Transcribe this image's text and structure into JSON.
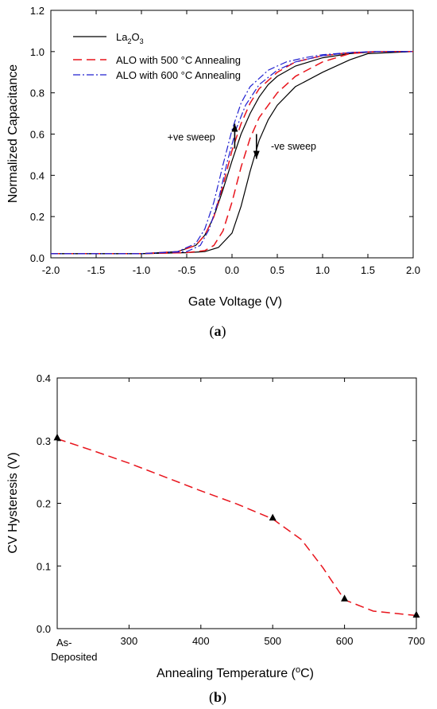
{
  "chart_data": [
    {
      "type": "line",
      "panel_label": "a",
      "xlabel": "Gate Voltage (V)",
      "ylabel": "Normalized Capacitance",
      "xlim": [
        -2.0,
        2.0
      ],
      "ylim": [
        0,
        1.2
      ],
      "xticks": [
        -2.0,
        -1.5,
        -1.0,
        -0.5,
        0.0,
        0.5,
        1.0,
        1.5,
        2.0
      ],
      "xtick_labels": [
        "-2.0",
        "-1.5",
        "-1.0",
        "-0.5",
        "0.0",
        "0.5",
        "1.0",
        "1.5",
        "2.0"
      ],
      "yticks": [
        0,
        0.2,
        0.4,
        0.6,
        0.8,
        1.0,
        1.2
      ],
      "ytick_labels": [
        "0.0",
        "0.2",
        "0.4",
        "0.6",
        "0.8",
        "1.0",
        "1.2"
      ],
      "legend_position": "top-left",
      "series": [
        {
          "name": "La2O3",
          "name_base": "La",
          "name_sub1": "2",
          "name_mid": "O",
          "name_sub2": "3",
          "color": "#000000",
          "style": "solid",
          "sweeps": [
            {
              "x": [
                -2.0,
                -1.0,
                -0.6,
                -0.4,
                -0.3,
                -0.2,
                -0.1,
                0.0,
                0.1,
                0.2,
                0.3,
                0.4,
                0.5,
                0.7,
                1.0,
                1.3,
                1.6,
                2.0
              ],
              "y": [
                0.02,
                0.02,
                0.03,
                0.06,
                0.11,
                0.2,
                0.33,
                0.47,
                0.6,
                0.7,
                0.78,
                0.84,
                0.88,
                0.93,
                0.97,
                0.99,
                1.0,
                1.0
              ]
            },
            {
              "x": [
                -2.0,
                -1.0,
                -0.5,
                -0.3,
                -0.15,
                0.0,
                0.1,
                0.2,
                0.3,
                0.4,
                0.5,
                0.7,
                1.0,
                1.3,
                1.5,
                2.0
              ],
              "y": [
                0.02,
                0.02,
                0.025,
                0.03,
                0.05,
                0.12,
                0.25,
                0.42,
                0.57,
                0.67,
                0.74,
                0.83,
                0.9,
                0.96,
                0.99,
                1.0
              ]
            }
          ]
        },
        {
          "name": "ALO with 500 °C Annealing",
          "color": "#e8141c",
          "style": "dashed",
          "sweeps": [
            {
              "x": [
                -2.0,
                -1.0,
                -0.6,
                -0.4,
                -0.3,
                -0.2,
                -0.1,
                0.0,
                0.1,
                0.2,
                0.3,
                0.5,
                0.7,
                1.0,
                1.3,
                1.6,
                2.0
              ],
              "y": [
                0.02,
                0.02,
                0.03,
                0.06,
                0.11,
                0.2,
                0.35,
                0.52,
                0.65,
                0.75,
                0.82,
                0.9,
                0.95,
                0.98,
                0.995,
                1.0,
                1.0
              ]
            },
            {
              "x": [
                -2.0,
                -1.0,
                -0.5,
                -0.3,
                -0.2,
                -0.1,
                0.0,
                0.1,
                0.2,
                0.3,
                0.5,
                0.7,
                1.0,
                1.3,
                1.6,
                2.0
              ],
              "y": [
                0.02,
                0.02,
                0.025,
                0.035,
                0.06,
                0.13,
                0.27,
                0.44,
                0.58,
                0.68,
                0.8,
                0.88,
                0.95,
                0.99,
                1.0,
                1.0
              ]
            }
          ]
        },
        {
          "name": "ALO with 600 °C Annealing",
          "color": "#2020d0",
          "style": "dashdot",
          "sweeps": [
            {
              "x": [
                -2.0,
                -1.0,
                -0.6,
                -0.4,
                -0.3,
                -0.2,
                -0.1,
                0.0,
                0.1,
                0.2,
                0.4,
                0.6,
                0.8,
                1.0,
                1.3,
                1.6,
                2.0
              ],
              "y": [
                0.02,
                0.02,
                0.03,
                0.07,
                0.14,
                0.27,
                0.45,
                0.62,
                0.75,
                0.83,
                0.91,
                0.95,
                0.97,
                0.985,
                0.995,
                1.0,
                1.0
              ]
            },
            {
              "x": [
                -2.0,
                -1.0,
                -0.5,
                -0.35,
                -0.25,
                -0.15,
                -0.05,
                0.05,
                0.15,
                0.3,
                0.5,
                0.7,
                1.0,
                1.3,
                1.6,
                2.0
              ],
              "y": [
                0.02,
                0.02,
                0.03,
                0.06,
                0.14,
                0.28,
                0.47,
                0.63,
                0.74,
                0.84,
                0.91,
                0.95,
                0.98,
                0.995,
                1.0,
                1.0
              ]
            }
          ]
        }
      ],
      "annotations": [
        {
          "text": "+ve sweep",
          "x": -0.45,
          "y": 0.57
        },
        {
          "text": "-ve sweep",
          "x": 0.68,
          "y": 0.525
        }
      ],
      "arrows": [
        {
          "direction": "up",
          "x": 0.03,
          "y_from": 0.53,
          "y_to": 0.65
        },
        {
          "direction": "down",
          "x": 0.27,
          "y_from": 0.6,
          "y_to": 0.48
        }
      ]
    },
    {
      "type": "line",
      "panel_label": "b",
      "xlabel_prefix": "Annealing Temperature (",
      "xlabel_sup": "o",
      "xlabel_suffix": "C)",
      "ylabel": "CV Hysteresis (V)",
      "xlim": [
        200,
        700
      ],
      "ylim": [
        0,
        0.4
      ],
      "xticks": [
        300,
        400,
        500,
        600,
        700
      ],
      "xtick_labels": [
        "300",
        "400",
        "500",
        "600",
        "700"
      ],
      "first_tick_label_line1": "As-",
      "first_tick_label_line2": "Deposited",
      "yticks": [
        0,
        0.1,
        0.2,
        0.3,
        0.4
      ],
      "ytick_labels": [
        "0.0",
        "0.1",
        "0.2",
        "0.3",
        "0.4"
      ],
      "color": "#e8141c",
      "style": "dashed",
      "marker": "triangle",
      "points": {
        "x": [
          200,
          500,
          600,
          700
        ],
        "y": [
          0.305,
          0.177,
          0.048,
          0.022
        ]
      },
      "fit": {
        "x": [
          200,
          250,
          300,
          350,
          400,
          450,
          500,
          540,
          570,
          600,
          640,
          700
        ],
        "y": [
          0.303,
          0.284,
          0.264,
          0.242,
          0.22,
          0.199,
          0.175,
          0.142,
          0.097,
          0.046,
          0.028,
          0.021
        ]
      }
    }
  ]
}
